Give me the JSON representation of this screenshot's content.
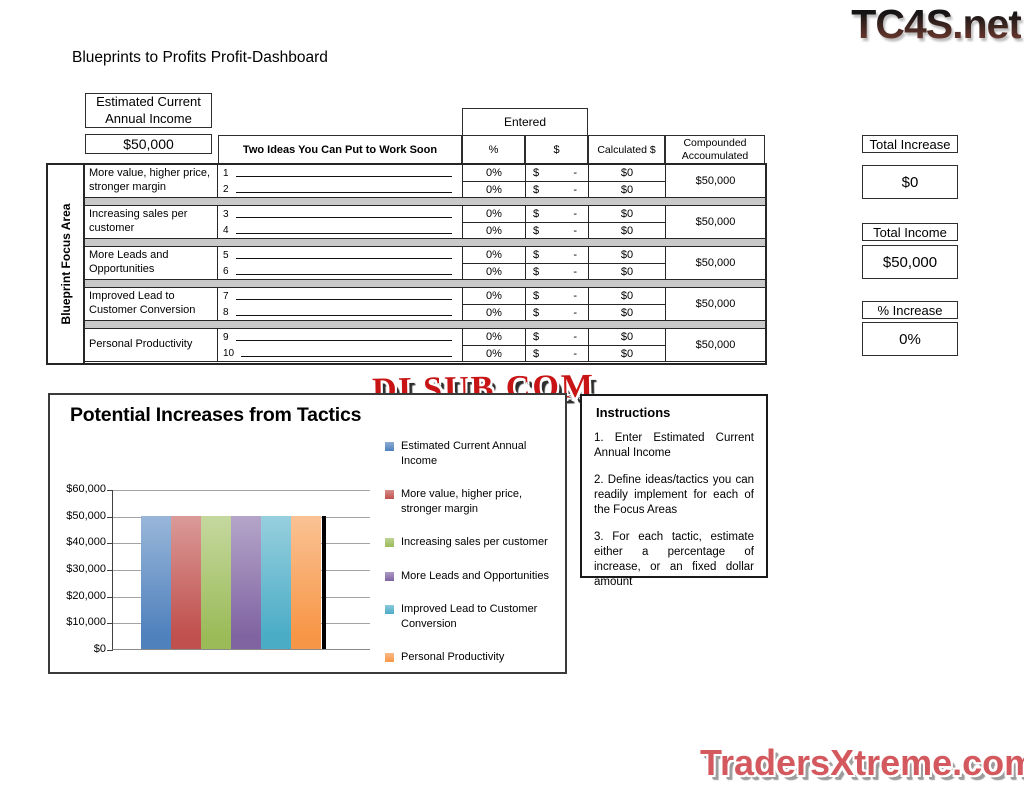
{
  "watermarks": {
    "top_right": "TC4S.net",
    "center": "DLSUB.COM",
    "bottom_right": "TradersXtreme.com"
  },
  "page_title": "Blueprints to Profits Profit-Dashboard",
  "income": {
    "label": "Estimated Current Annual Income",
    "value": "$50,000"
  },
  "table": {
    "focus_area_label": "Blueprint Focus Area",
    "ideas_header": "Two Ideas You Can Put to Work Soon",
    "entered_header": "Entered",
    "col_percent": "%",
    "col_dollar": "$",
    "col_calculated": "Calculated $",
    "col_compounded": "Compounded Accoumulated",
    "groups": [
      {
        "label": "More value, higher price, stronger margin",
        "compounded": "$50,000",
        "rows": [
          {
            "num": "1",
            "percent": "0%",
            "currency": "$",
            "amount": "-",
            "calculated": "$0"
          },
          {
            "num": "2",
            "percent": "0%",
            "currency": "$",
            "amount": "-",
            "calculated": "$0"
          }
        ]
      },
      {
        "label": "Increasing sales per customer",
        "compounded": "$50,000",
        "rows": [
          {
            "num": "3",
            "percent": "0%",
            "currency": "$",
            "amount": "-",
            "calculated": "$0"
          },
          {
            "num": "4",
            "percent": "0%",
            "currency": "$",
            "amount": "-",
            "calculated": "$0"
          }
        ]
      },
      {
        "label": "More Leads and Opportunities",
        "compounded": "$50,000",
        "rows": [
          {
            "num": "5",
            "percent": "0%",
            "currency": "$",
            "amount": "-",
            "calculated": "$0"
          },
          {
            "num": "6",
            "percent": "0%",
            "currency": "$",
            "amount": "-",
            "calculated": "$0"
          }
        ]
      },
      {
        "label": "Improved Lead to Customer Conversion",
        "compounded": "$50,000",
        "rows": [
          {
            "num": "7",
            "percent": "0%",
            "currency": "$",
            "amount": "-",
            "calculated": "$0"
          },
          {
            "num": "8",
            "percent": "0%",
            "currency": "$",
            "amount": "-",
            "calculated": "$0"
          }
        ]
      },
      {
        "label": "Personal Productivity",
        "compounded": "$50,000",
        "rows": [
          {
            "num": "9",
            "percent": "0%",
            "currency": "$",
            "amount": "-",
            "calculated": "$0"
          },
          {
            "num": "10",
            "percent": "0%",
            "currency": "$",
            "amount": "-",
            "calculated": "$0"
          }
        ]
      }
    ]
  },
  "totals": {
    "total_increase_label": "Total Increase",
    "total_increase_value": "$0",
    "total_income_label": "Total Income",
    "total_income_value": "$50,000",
    "percent_increase_label": "% Increase",
    "percent_increase_value": "0%"
  },
  "chart_data": {
    "type": "bar",
    "title": "Potential Increases from Tactics",
    "xlabel": "",
    "ylabel": "",
    "ylim": [
      0,
      60000
    ],
    "grid": true,
    "legend_position": "right",
    "y_ticks": [
      "$60,000",
      "$50,000",
      "$40,000",
      "$30,000",
      "$20,000",
      "$10,000",
      "$0"
    ],
    "series": [
      {
        "name": "Estimated Current Annual Income",
        "value": 50000,
        "color": "#4F81BD"
      },
      {
        "name": "More value, higher price, stronger margin",
        "value": 50000,
        "color": "#C0504D"
      },
      {
        "name": "Increasing sales per customer",
        "value": 50000,
        "color": "#9BBB59"
      },
      {
        "name": "More Leads and Opportunities",
        "value": 50000,
        "color": "#8064A2"
      },
      {
        "name": "Improved Lead to Customer Conversion",
        "value": 50000,
        "color": "#4BACC6"
      },
      {
        "name": "Personal Productivity",
        "value": 50000,
        "color": "#F79646"
      }
    ]
  },
  "instructions": {
    "title": "Instructions",
    "items": [
      "1. Enter Estimated Current Annual Income",
      "2. Define ideas/tactics you can readily implement for each of the Focus Areas",
      "3. For each tactic, estimate either a percentage of increase, or an fixed dollar amount"
    ]
  }
}
